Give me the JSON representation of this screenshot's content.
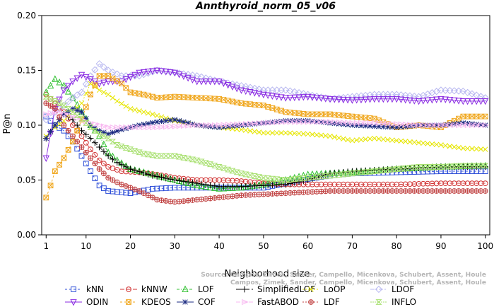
{
  "chart_data": {
    "type": "line",
    "title": "Annthyroid_norm_05_v06",
    "xlabel": "Neighborhood size",
    "ylabel": "P@n",
    "xlim": [
      0,
      101
    ],
    "ylim": [
      0,
      0.2
    ],
    "xticks": [
      "1",
      "10",
      "20",
      "30",
      "40",
      "50",
      "60",
      "70",
      "80",
      "90",
      "100"
    ],
    "yticks": [
      "0.00",
      "0.05",
      "0.10",
      "0.15",
      "0.20"
    ],
    "credit_lines": [
      "Source: Campos, Zimek, Sander, Campello, Micenkova, Schubert, Assent, Houle",
      "Campos, Zimek, Sander, Campello, Micenkova, Schubert, Assent, Houle"
    ],
    "series": [
      {
        "name": "kNN",
        "color": "#3050d8",
        "marker": "square",
        "dash": "3,3",
        "points": [
          [
            1,
            0.108
          ],
          [
            3,
            0.1
          ],
          [
            5,
            0.095
          ],
          [
            7,
            0.085
          ],
          [
            9,
            0.072
          ],
          [
            11,
            0.058
          ],
          [
            13,
            0.045
          ],
          [
            15,
            0.04
          ],
          [
            20,
            0.038
          ],
          [
            25,
            0.042
          ],
          [
            30,
            0.043
          ],
          [
            40,
            0.043
          ],
          [
            50,
            0.043
          ],
          [
            55,
            0.047
          ],
          [
            60,
            0.051
          ],
          [
            65,
            0.054
          ],
          [
            70,
            0.056
          ],
          [
            80,
            0.057
          ],
          [
            90,
            0.058
          ],
          [
            100,
            0.058
          ]
        ]
      },
      {
        "name": "kNNW",
        "color": "#d03030",
        "marker": "circle",
        "dash": "6,3",
        "points": [
          [
            1,
            0.128
          ],
          [
            3,
            0.12
          ],
          [
            5,
            0.112
          ],
          [
            7,
            0.1
          ],
          [
            9,
            0.09
          ],
          [
            11,
            0.078
          ],
          [
            13,
            0.068
          ],
          [
            15,
            0.062
          ],
          [
            18,
            0.058
          ],
          [
            22,
            0.057
          ],
          [
            26,
            0.055
          ],
          [
            30,
            0.052
          ],
          [
            35,
            0.05
          ],
          [
            40,
            0.05
          ],
          [
            45,
            0.049
          ],
          [
            50,
            0.047
          ],
          [
            55,
            0.046
          ],
          [
            60,
            0.046
          ],
          [
            70,
            0.046
          ],
          [
            80,
            0.046
          ],
          [
            90,
            0.047
          ],
          [
            100,
            0.047
          ]
        ]
      },
      {
        "name": "LOF",
        "color": "#30c030",
        "marker": "triangle-up",
        "dash": "4,2,1,2",
        "points": [
          [
            1,
            0.13
          ],
          [
            3,
            0.142
          ],
          [
            5,
            0.136
          ],
          [
            7,
            0.125
          ],
          [
            9,
            0.112
          ],
          [
            11,
            0.1
          ],
          [
            13,
            0.09
          ],
          [
            15,
            0.075
          ],
          [
            17,
            0.068
          ],
          [
            20,
            0.06
          ],
          [
            25,
            0.055
          ],
          [
            30,
            0.05
          ],
          [
            35,
            0.045
          ],
          [
            40,
            0.042
          ],
          [
            45,
            0.043
          ],
          [
            50,
            0.046
          ],
          [
            55,
            0.05
          ],
          [
            60,
            0.055
          ],
          [
            70,
            0.057
          ],
          [
            80,
            0.06
          ],
          [
            90,
            0.062
          ],
          [
            100,
            0.063
          ]
        ]
      },
      {
        "name": "SimplifiedLOF",
        "color": "#000000",
        "marker": "plus",
        "dash": "8,3",
        "points": [
          [
            1,
            0.088
          ],
          [
            3,
            0.1
          ],
          [
            5,
            0.11
          ],
          [
            7,
            0.105
          ],
          [
            9,
            0.095
          ],
          [
            11,
            0.088
          ],
          [
            13,
            0.08
          ],
          [
            15,
            0.072
          ],
          [
            17,
            0.066
          ],
          [
            20,
            0.06
          ],
          [
            25,
            0.054
          ],
          [
            30,
            0.05
          ],
          [
            35,
            0.047
          ],
          [
            40,
            0.044
          ],
          [
            45,
            0.044
          ],
          [
            50,
            0.045
          ],
          [
            55,
            0.046
          ],
          [
            60,
            0.05
          ],
          [
            65,
            0.056
          ],
          [
            70,
            0.058
          ],
          [
            80,
            0.06
          ],
          [
            90,
            0.062
          ],
          [
            100,
            0.062
          ]
        ]
      },
      {
        "name": "LoOP",
        "color": "#e6e600",
        "marker": "x",
        "dash": "2,2",
        "points": [
          [
            1,
            0.09
          ],
          [
            3,
            0.098
          ],
          [
            5,
            0.104
          ],
          [
            7,
            0.112
          ],
          [
            9,
            0.12
          ],
          [
            11,
            0.138
          ],
          [
            13,
            0.132
          ],
          [
            15,
            0.128
          ],
          [
            17,
            0.122
          ],
          [
            20,
            0.115
          ],
          [
            25,
            0.11
          ],
          [
            30,
            0.104
          ],
          [
            35,
            0.1
          ],
          [
            40,
            0.098
          ],
          [
            45,
            0.096
          ],
          [
            50,
            0.093
          ],
          [
            55,
            0.093
          ],
          [
            60,
            0.092
          ],
          [
            65,
            0.09
          ],
          [
            70,
            0.086
          ],
          [
            75,
            0.088
          ],
          [
            80,
            0.086
          ],
          [
            85,
            0.084
          ],
          [
            90,
            0.082
          ],
          [
            95,
            0.079
          ],
          [
            100,
            0.078
          ]
        ]
      },
      {
        "name": "LDOF",
        "color": "#b8b8f0",
        "marker": "diamond",
        "dash": "6,2,2,2",
        "points": [
          [
            1,
            0.105
          ],
          [
            3,
            0.112
          ],
          [
            5,
            0.118
          ],
          [
            7,
            0.125
          ],
          [
            9,
            0.13
          ],
          [
            11,
            0.145
          ],
          [
            13,
            0.156
          ],
          [
            15,
            0.15
          ],
          [
            18,
            0.145
          ],
          [
            22,
            0.145
          ],
          [
            26,
            0.15
          ],
          [
            30,
            0.148
          ],
          [
            35,
            0.145
          ],
          [
            40,
            0.14
          ],
          [
            45,
            0.136
          ],
          [
            50,
            0.132
          ],
          [
            55,
            0.132
          ],
          [
            60,
            0.128
          ],
          [
            65,
            0.124
          ],
          [
            70,
            0.126
          ],
          [
            75,
            0.128
          ],
          [
            80,
            0.128
          ],
          [
            85,
            0.126
          ],
          [
            90,
            0.132
          ],
          [
            95,
            0.131
          ],
          [
            100,
            0.125
          ]
        ]
      },
      {
        "name": "ODIN",
        "color": "#8a2be2",
        "marker": "triangle-down",
        "dash": "none",
        "points": [
          [
            1,
            0.07
          ],
          [
            3,
            0.115
          ],
          [
            5,
            0.132
          ],
          [
            7,
            0.14
          ],
          [
            9,
            0.146
          ],
          [
            11,
            0.142
          ],
          [
            13,
            0.138
          ],
          [
            15,
            0.14
          ],
          [
            18,
            0.14
          ],
          [
            22,
            0.148
          ],
          [
            26,
            0.15
          ],
          [
            30,
            0.148
          ],
          [
            35,
            0.14
          ],
          [
            40,
            0.14
          ],
          [
            45,
            0.132
          ],
          [
            50,
            0.128
          ],
          [
            55,
            0.125
          ],
          [
            60,
            0.126
          ],
          [
            65,
            0.124
          ],
          [
            70,
            0.123
          ],
          [
            75,
            0.124
          ],
          [
            80,
            0.124
          ],
          [
            85,
            0.122
          ],
          [
            90,
            0.124
          ],
          [
            95,
            0.122
          ],
          [
            100,
            0.122
          ]
        ]
      },
      {
        "name": "KDEOS",
        "color": "#f0a820",
        "marker": "square-x",
        "dash": "3,3",
        "points": [
          [
            1,
            0.034
          ],
          [
            2,
            0.045
          ],
          [
            3,
            0.058
          ],
          [
            5,
            0.07
          ],
          [
            7,
            0.085
          ],
          [
            9,
            0.105
          ],
          [
            11,
            0.128
          ],
          [
            13,
            0.145
          ],
          [
            15,
            0.145
          ],
          [
            18,
            0.138
          ],
          [
            20,
            0.13
          ],
          [
            23,
            0.128
          ],
          [
            26,
            0.125
          ],
          [
            30,
            0.126
          ],
          [
            35,
            0.125
          ],
          [
            40,
            0.124
          ],
          [
            45,
            0.12
          ],
          [
            50,
            0.118
          ],
          [
            55,
            0.112
          ],
          [
            60,
            0.11
          ],
          [
            65,
            0.11
          ],
          [
            70,
            0.108
          ],
          [
            75,
            0.106
          ],
          [
            80,
            0.098
          ],
          [
            85,
            0.1
          ],
          [
            90,
            0.098
          ],
          [
            95,
            0.108
          ],
          [
            100,
            0.108
          ]
        ]
      },
      {
        "name": "COF",
        "color": "#1a2a80",
        "marker": "star",
        "dash": "none",
        "points": [
          [
            1,
            0.088
          ],
          [
            3,
            0.1
          ],
          [
            5,
            0.11
          ],
          [
            7,
            0.115
          ],
          [
            9,
            0.112
          ],
          [
            11,
            0.1
          ],
          [
            13,
            0.095
          ],
          [
            15,
            0.092
          ],
          [
            18,
            0.096
          ],
          [
            22,
            0.1
          ],
          [
            26,
            0.103
          ],
          [
            30,
            0.105
          ],
          [
            35,
            0.1
          ],
          [
            40,
            0.098
          ],
          [
            45,
            0.1
          ],
          [
            50,
            0.102
          ],
          [
            55,
            0.104
          ],
          [
            60,
            0.104
          ],
          [
            65,
            0.102
          ],
          [
            70,
            0.1
          ],
          [
            75,
            0.099
          ],
          [
            80,
            0.098
          ],
          [
            85,
            0.1
          ],
          [
            90,
            0.1
          ],
          [
            95,
            0.102
          ],
          [
            100,
            0.1
          ]
        ]
      },
      {
        "name": "FastABOD",
        "color": "#f8b8f0",
        "marker": "triangle-right",
        "dash": "6,3",
        "points": [
          [
            1,
            0.11
          ],
          [
            3,
            0.112
          ],
          [
            5,
            0.11
          ],
          [
            7,
            0.108
          ],
          [
            9,
            0.105
          ],
          [
            11,
            0.102
          ],
          [
            13,
            0.1
          ],
          [
            15,
            0.098
          ],
          [
            20,
            0.098
          ],
          [
            25,
            0.098
          ],
          [
            30,
            0.099
          ],
          [
            35,
            0.1
          ],
          [
            40,
            0.1
          ],
          [
            45,
            0.101
          ],
          [
            50,
            0.102
          ],
          [
            55,
            0.103
          ],
          [
            60,
            0.103
          ],
          [
            65,
            0.103
          ],
          [
            70,
            0.102
          ],
          [
            75,
            0.102
          ],
          [
            80,
            0.101
          ],
          [
            85,
            0.1
          ],
          [
            90,
            0.1
          ],
          [
            95,
            0.1
          ],
          [
            100,
            0.1
          ]
        ]
      },
      {
        "name": "LDF",
        "color": "#c04040",
        "marker": "circle-plus",
        "dash": "2,2",
        "points": [
          [
            1,
            0.12
          ],
          [
            3,
            0.115
          ],
          [
            5,
            0.1
          ],
          [
            7,
            0.09
          ],
          [
            9,
            0.08
          ],
          [
            11,
            0.07
          ],
          [
            13,
            0.06
          ],
          [
            15,
            0.052
          ],
          [
            18,
            0.046
          ],
          [
            22,
            0.04
          ],
          [
            26,
            0.032
          ],
          [
            30,
            0.03
          ],
          [
            35,
            0.032
          ],
          [
            40,
            0.034
          ],
          [
            45,
            0.036
          ],
          [
            50,
            0.037
          ],
          [
            55,
            0.038
          ],
          [
            60,
            0.039
          ],
          [
            65,
            0.04
          ],
          [
            70,
            0.04
          ],
          [
            75,
            0.04
          ],
          [
            80,
            0.04
          ],
          [
            85,
            0.04
          ],
          [
            90,
            0.04
          ],
          [
            95,
            0.04
          ],
          [
            100,
            0.04
          ]
        ]
      },
      {
        "name": "INFLO",
        "color": "#a8e070",
        "marker": "hourglass",
        "dash": "2,1",
        "points": [
          [
            1,
            0.126
          ],
          [
            3,
            0.122
          ],
          [
            5,
            0.118
          ],
          [
            7,
            0.112
          ],
          [
            9,
            0.106
          ],
          [
            11,
            0.098
          ],
          [
            13,
            0.092
          ],
          [
            15,
            0.088
          ],
          [
            17,
            0.082
          ],
          [
            20,
            0.078
          ],
          [
            23,
            0.074
          ],
          [
            26,
            0.072
          ],
          [
            30,
            0.072
          ],
          [
            35,
            0.068
          ],
          [
            40,
            0.062
          ],
          [
            45,
            0.056
          ],
          [
            50,
            0.052
          ],
          [
            55,
            0.05
          ],
          [
            60,
            0.052
          ],
          [
            65,
            0.054
          ],
          [
            70,
            0.056
          ],
          [
            75,
            0.058
          ],
          [
            80,
            0.06
          ],
          [
            85,
            0.062
          ],
          [
            90,
            0.062
          ],
          [
            95,
            0.063
          ],
          [
            100,
            0.063
          ]
        ]
      }
    ]
  }
}
